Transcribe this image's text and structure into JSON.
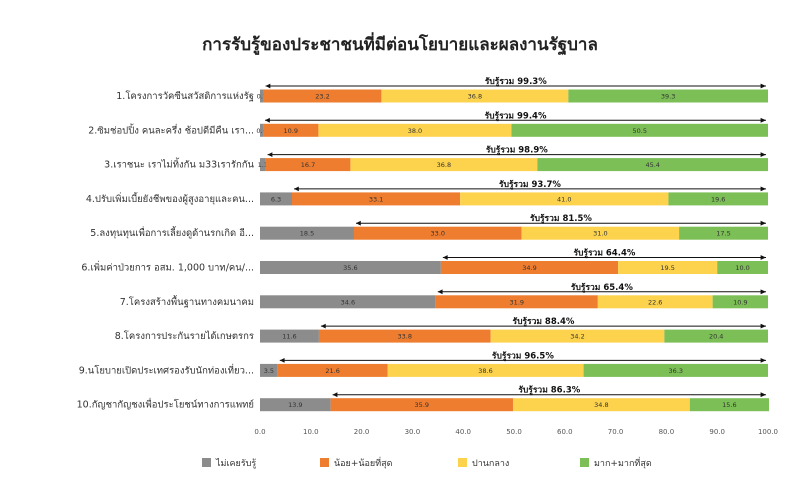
{
  "chart_data": {
    "type": "bar",
    "orientation": "horizontal",
    "stacked": true,
    "title": "การรับรู้ของประชาชนที่มีต่อนโยบายและผลงานรัฐบาล",
    "categories": [
      "1.โครงการวัคซีนสวัสดิการแห่งรัฐ",
      "2.ซิมช่อปปิ้ง คนละครึ่ง ช้อปดีมีคืน เรา...",
      "3.เราชนะ เราไม่ทิ้งกัน ม33เรารักกัน",
      "4.ปรับเพิ่มเบี้ยยังชีพของผู้สูงอายุและคน...",
      "5.ลงทุนทุนเพื่อการเลี้ยงดูด้านรกเกิด อี...",
      "6.เพิ่มค่าป่วยการ อสม. 1,000 บาท/คน/...",
      "7.โครงสร้างพื้นฐานทางคมนาคม",
      "8.โครงการประกันรายได้เกษตรกร",
      "9.นโยบายเปิดประเทศรองรับนักท่องเที่ยว...",
      "10.กัญชากัญชงเพื่อประโยชน์ทางการแพทย์"
    ],
    "series": [
      {
        "name": "ไม่เคยรับรู้",
        "color": "#8c8c8c",
        "values": [
          0.7,
          0.6,
          1.1,
          6.3,
          18.5,
          35.6,
          34.6,
          11.6,
          3.5,
          13.9
        ]
      },
      {
        "name": "น้อย+น้อยที่สุด",
        "color": "#ee7d2f",
        "values": [
          23.2,
          10.9,
          16.7,
          33.1,
          33.0,
          34.9,
          31.9,
          33.8,
          21.6,
          35.9
        ]
      },
      {
        "name": "ปานกลาง",
        "color": "#fdd34e",
        "values": [
          36.8,
          38.0,
          36.8,
          41.0,
          31.0,
          19.5,
          22.6,
          34.2,
          38.6,
          34.8
        ]
      },
      {
        "name": "มาก+มากที่สุด",
        "color": "#7cbf56",
        "values": [
          39.3,
          50.5,
          45.4,
          19.6,
          17.5,
          10.0,
          10.9,
          20.4,
          36.3,
          15.6
        ]
      }
    ],
    "awareness_labels": [
      "รับรู้รวม 99.3%",
      "รับรู้รวม 99.4%",
      "รับรู้รวม 98.9%",
      "รับรู้รวม 93.7%",
      "รับรู้รวม 81.5%",
      "รับรู้รวม 64.4%",
      "รับรู้รวม 65.4%",
      "รับรู้รวม 88.4%",
      "รับรู้รวม 96.5%",
      "รับรู้รวม 86.3%"
    ],
    "xticks": [
      "0.0",
      "10.0",
      "20.0",
      "30.0",
      "40.0",
      "50.0",
      "60.0",
      "70.0",
      "80.0",
      "90.0",
      "100.0"
    ],
    "xlim": [
      0,
      100
    ],
    "legend_position": "bottom"
  }
}
